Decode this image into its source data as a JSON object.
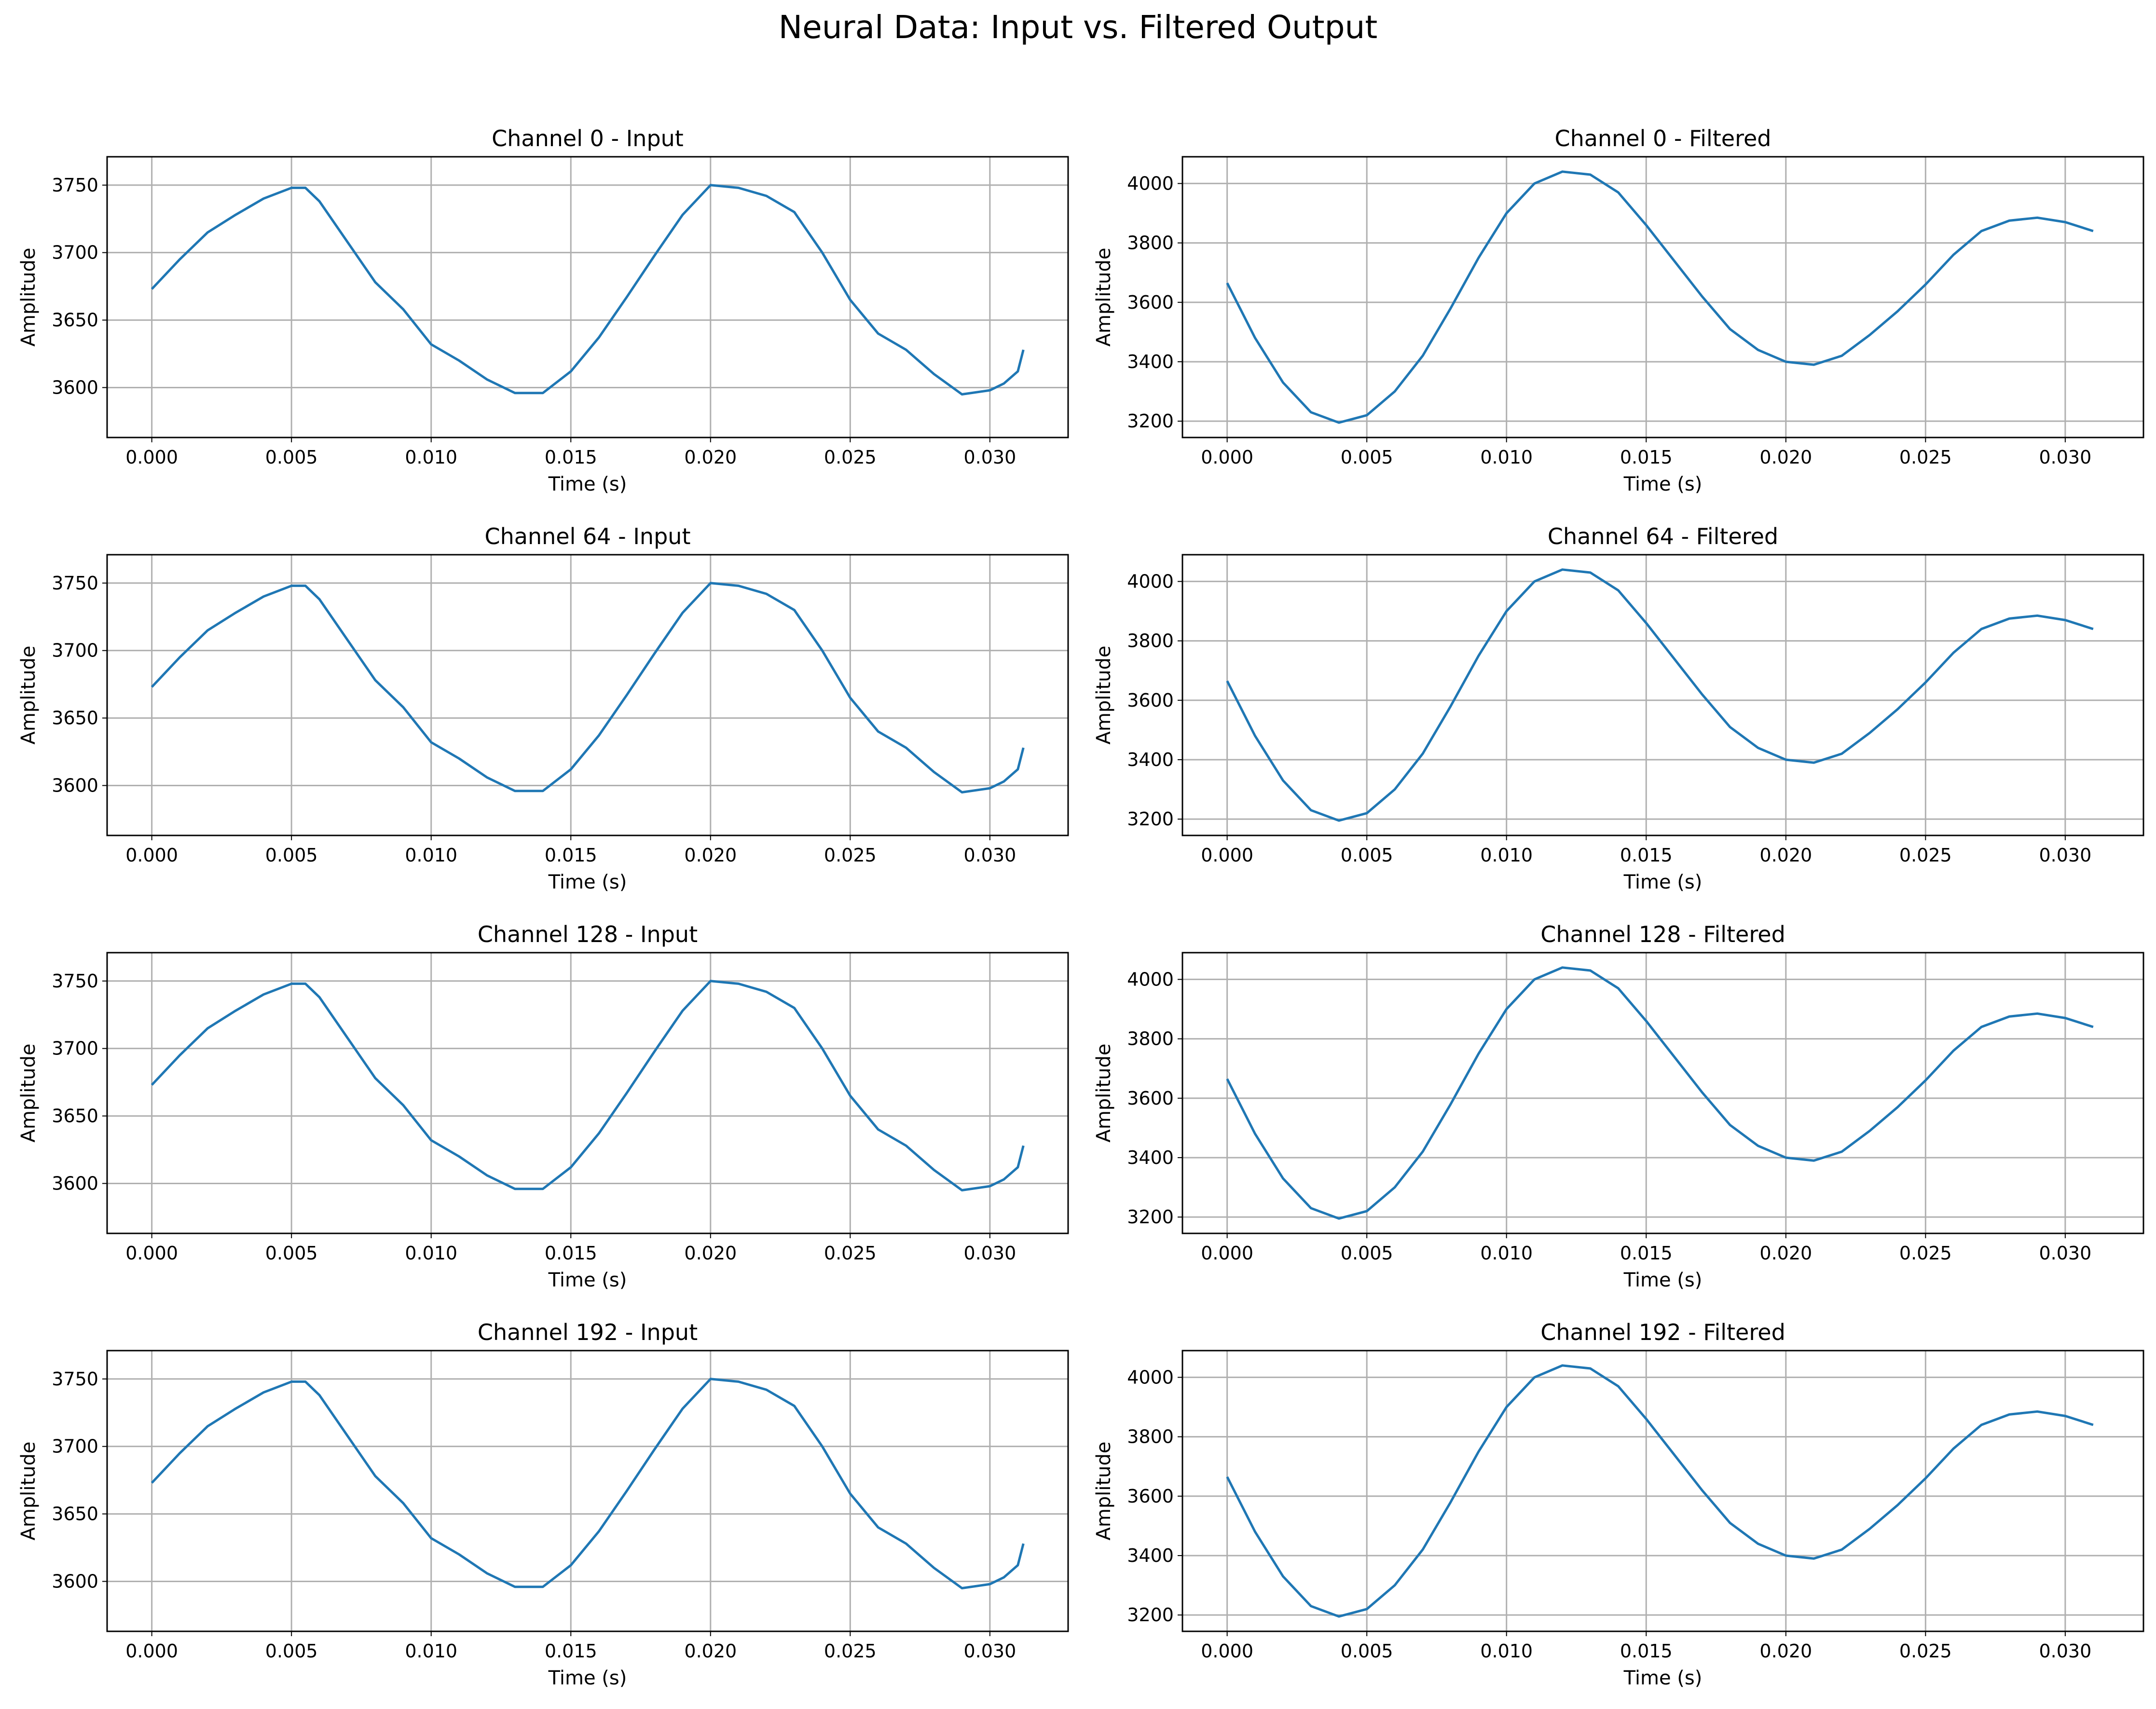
{
  "figure": {
    "suptitle": "Neural Data: Input vs. Filtered Output",
    "line_color": "#1f77b4",
    "grid_color": "#b0b0b0"
  },
  "chart_data": [
    {
      "type": "line",
      "title": "Channel 0 - Input",
      "xlabel": "Time (s)",
      "ylabel": "Amplitude",
      "xlim": [
        -0.0016,
        0.0328
      ],
      "ylim": [
        3563,
        3771
      ],
      "xticks": [
        "0.000",
        "0.005",
        "0.010",
        "0.015",
        "0.020",
        "0.025",
        "0.030"
      ],
      "yticks": [
        3600,
        3650,
        3700,
        3750
      ],
      "grid": true,
      "series": [
        {
          "x": [
            0.0,
            0.001,
            0.002,
            0.003,
            0.004,
            0.005,
            0.0055,
            0.006,
            0.007,
            0.008,
            0.009,
            0.01,
            0.011,
            0.012,
            0.013,
            0.014,
            0.015,
            0.016,
            0.017,
            0.018,
            0.019,
            0.02,
            0.021,
            0.022,
            0.023,
            0.024,
            0.025,
            0.026,
            0.027,
            0.028,
            0.029,
            0.03,
            0.0305,
            0.031,
            0.0312
          ],
          "y": [
            3673,
            3695,
            3715,
            3728,
            3740,
            3748,
            3748,
            3738,
            3708,
            3678,
            3658,
            3632,
            3620,
            3606,
            3596,
            3596,
            3612,
            3637,
            3667,
            3698,
            3728,
            3750,
            3748,
            3742,
            3730,
            3700,
            3665,
            3640,
            3628,
            3610,
            3595,
            3598,
            3603,
            3612,
            3628
          ]
        }
      ]
    },
    {
      "type": "line",
      "title": "Channel 0 - Filtered",
      "xlabel": "Time (s)",
      "ylabel": "Amplitude",
      "xlim": [
        -0.0016,
        0.0328
      ],
      "ylim": [
        3145,
        4090
      ],
      "xticks": [
        "0.000",
        "0.005",
        "0.010",
        "0.015",
        "0.020",
        "0.025",
        "0.030"
      ],
      "yticks": [
        3200,
        3400,
        3600,
        3800,
        4000
      ],
      "grid": true,
      "series": [
        {
          "x": [
            0.0,
            0.001,
            0.002,
            0.003,
            0.004,
            0.005,
            0.006,
            0.007,
            0.008,
            0.009,
            0.01,
            0.011,
            0.012,
            0.013,
            0.014,
            0.015,
            0.016,
            0.017,
            0.018,
            0.019,
            0.02,
            0.021,
            0.022,
            0.023,
            0.024,
            0.025,
            0.026,
            0.027,
            0.028,
            0.029,
            0.03,
            0.031
          ],
          "y": [
            3665,
            3480,
            3330,
            3230,
            3195,
            3220,
            3300,
            3420,
            3580,
            3750,
            3900,
            4000,
            4040,
            4030,
            3970,
            3860,
            3740,
            3620,
            3510,
            3440,
            3400,
            3390,
            3420,
            3490,
            3570,
            3660,
            3760,
            3840,
            3875,
            3885,
            3870,
            3840
          ]
        }
      ]
    },
    {
      "type": "line",
      "title": "Channel 64 - Input",
      "xlabel": "Time (s)",
      "ylabel": "Amplitude",
      "xlim": [
        -0.0016,
        0.0328
      ],
      "ylim": [
        3563,
        3771
      ],
      "xticks": [
        "0.000",
        "0.005",
        "0.010",
        "0.015",
        "0.020",
        "0.025",
        "0.030"
      ],
      "yticks": [
        3600,
        3650,
        3700,
        3750
      ],
      "grid": true,
      "series": [
        {
          "x": [
            0.0,
            0.001,
            0.002,
            0.003,
            0.004,
            0.005,
            0.0055,
            0.006,
            0.007,
            0.008,
            0.009,
            0.01,
            0.011,
            0.012,
            0.013,
            0.014,
            0.015,
            0.016,
            0.017,
            0.018,
            0.019,
            0.02,
            0.021,
            0.022,
            0.023,
            0.024,
            0.025,
            0.026,
            0.027,
            0.028,
            0.029,
            0.03,
            0.0305,
            0.031,
            0.0312
          ],
          "y": [
            3673,
            3695,
            3715,
            3728,
            3740,
            3748,
            3748,
            3738,
            3708,
            3678,
            3658,
            3632,
            3620,
            3606,
            3596,
            3596,
            3612,
            3637,
            3667,
            3698,
            3728,
            3750,
            3748,
            3742,
            3730,
            3700,
            3665,
            3640,
            3628,
            3610,
            3595,
            3598,
            3603,
            3612,
            3628
          ]
        }
      ]
    },
    {
      "type": "line",
      "title": "Channel 64 - Filtered",
      "xlabel": "Time (s)",
      "ylabel": "Amplitude",
      "xlim": [
        -0.0016,
        0.0328
      ],
      "ylim": [
        3145,
        4090
      ],
      "xticks": [
        "0.000",
        "0.005",
        "0.010",
        "0.015",
        "0.020",
        "0.025",
        "0.030"
      ],
      "yticks": [
        3200,
        3400,
        3600,
        3800,
        4000
      ],
      "grid": true,
      "series": [
        {
          "x": [
            0.0,
            0.001,
            0.002,
            0.003,
            0.004,
            0.005,
            0.006,
            0.007,
            0.008,
            0.009,
            0.01,
            0.011,
            0.012,
            0.013,
            0.014,
            0.015,
            0.016,
            0.017,
            0.018,
            0.019,
            0.02,
            0.021,
            0.022,
            0.023,
            0.024,
            0.025,
            0.026,
            0.027,
            0.028,
            0.029,
            0.03,
            0.031
          ],
          "y": [
            3665,
            3480,
            3330,
            3230,
            3195,
            3220,
            3300,
            3420,
            3580,
            3750,
            3900,
            4000,
            4040,
            4030,
            3970,
            3860,
            3740,
            3620,
            3510,
            3440,
            3400,
            3390,
            3420,
            3490,
            3570,
            3660,
            3760,
            3840,
            3875,
            3885,
            3870,
            3840
          ]
        }
      ]
    },
    {
      "type": "line",
      "title": "Channel 128 - Input",
      "xlabel": "Time (s)",
      "ylabel": "Amplitude",
      "xlim": [
        -0.0016,
        0.0328
      ],
      "ylim": [
        3563,
        3771
      ],
      "xticks": [
        "0.000",
        "0.005",
        "0.010",
        "0.015",
        "0.020",
        "0.025",
        "0.030"
      ],
      "yticks": [
        3600,
        3650,
        3700,
        3750
      ],
      "grid": true,
      "series": [
        {
          "x": [
            0.0,
            0.001,
            0.002,
            0.003,
            0.004,
            0.005,
            0.0055,
            0.006,
            0.007,
            0.008,
            0.009,
            0.01,
            0.011,
            0.012,
            0.013,
            0.014,
            0.015,
            0.016,
            0.017,
            0.018,
            0.019,
            0.02,
            0.021,
            0.022,
            0.023,
            0.024,
            0.025,
            0.026,
            0.027,
            0.028,
            0.029,
            0.03,
            0.0305,
            0.031,
            0.0312
          ],
          "y": [
            3673,
            3695,
            3715,
            3728,
            3740,
            3748,
            3748,
            3738,
            3708,
            3678,
            3658,
            3632,
            3620,
            3606,
            3596,
            3596,
            3612,
            3637,
            3667,
            3698,
            3728,
            3750,
            3748,
            3742,
            3730,
            3700,
            3665,
            3640,
            3628,
            3610,
            3595,
            3598,
            3603,
            3612,
            3628
          ]
        }
      ]
    },
    {
      "type": "line",
      "title": "Channel 128 - Filtered",
      "xlabel": "Time (s)",
      "ylabel": "Amplitude",
      "xlim": [
        -0.0016,
        0.0328
      ],
      "ylim": [
        3145,
        4090
      ],
      "xticks": [
        "0.000",
        "0.005",
        "0.010",
        "0.015",
        "0.020",
        "0.025",
        "0.030"
      ],
      "yticks": [
        3200,
        3400,
        3600,
        3800,
        4000
      ],
      "grid": true,
      "series": [
        {
          "x": [
            0.0,
            0.001,
            0.002,
            0.003,
            0.004,
            0.005,
            0.006,
            0.007,
            0.008,
            0.009,
            0.01,
            0.011,
            0.012,
            0.013,
            0.014,
            0.015,
            0.016,
            0.017,
            0.018,
            0.019,
            0.02,
            0.021,
            0.022,
            0.023,
            0.024,
            0.025,
            0.026,
            0.027,
            0.028,
            0.029,
            0.03,
            0.031
          ],
          "y": [
            3665,
            3480,
            3330,
            3230,
            3195,
            3220,
            3300,
            3420,
            3580,
            3750,
            3900,
            4000,
            4040,
            4030,
            3970,
            3860,
            3740,
            3620,
            3510,
            3440,
            3400,
            3390,
            3420,
            3490,
            3570,
            3660,
            3760,
            3840,
            3875,
            3885,
            3870,
            3840
          ]
        }
      ]
    },
    {
      "type": "line",
      "title": "Channel 192 - Input",
      "xlabel": "Time (s)",
      "ylabel": "Amplitude",
      "xlim": [
        -0.0016,
        0.0328
      ],
      "ylim": [
        3563,
        3771
      ],
      "xticks": [
        "0.000",
        "0.005",
        "0.010",
        "0.015",
        "0.020",
        "0.025",
        "0.030"
      ],
      "yticks": [
        3600,
        3650,
        3700,
        3750
      ],
      "grid": true,
      "series": [
        {
          "x": [
            0.0,
            0.001,
            0.002,
            0.003,
            0.004,
            0.005,
            0.0055,
            0.006,
            0.007,
            0.008,
            0.009,
            0.01,
            0.011,
            0.012,
            0.013,
            0.014,
            0.015,
            0.016,
            0.017,
            0.018,
            0.019,
            0.02,
            0.021,
            0.022,
            0.023,
            0.024,
            0.025,
            0.026,
            0.027,
            0.028,
            0.029,
            0.03,
            0.0305,
            0.031,
            0.0312
          ],
          "y": [
            3673,
            3695,
            3715,
            3728,
            3740,
            3748,
            3748,
            3738,
            3708,
            3678,
            3658,
            3632,
            3620,
            3606,
            3596,
            3596,
            3612,
            3637,
            3667,
            3698,
            3728,
            3750,
            3748,
            3742,
            3730,
            3700,
            3665,
            3640,
            3628,
            3610,
            3595,
            3598,
            3603,
            3612,
            3628
          ]
        }
      ]
    },
    {
      "type": "line",
      "title": "Channel 192 - Filtered",
      "xlabel": "Time (s)",
      "ylabel": "Amplitude",
      "xlim": [
        -0.0016,
        0.0328
      ],
      "ylim": [
        3145,
        4090
      ],
      "xticks": [
        "0.000",
        "0.005",
        "0.010",
        "0.015",
        "0.020",
        "0.025",
        "0.030"
      ],
      "yticks": [
        3200,
        3400,
        3600,
        3800,
        4000
      ],
      "grid": true,
      "series": [
        {
          "x": [
            0.0,
            0.001,
            0.002,
            0.003,
            0.004,
            0.005,
            0.006,
            0.007,
            0.008,
            0.009,
            0.01,
            0.011,
            0.012,
            0.013,
            0.014,
            0.015,
            0.016,
            0.017,
            0.018,
            0.019,
            0.02,
            0.021,
            0.022,
            0.023,
            0.024,
            0.025,
            0.026,
            0.027,
            0.028,
            0.029,
            0.03,
            0.031
          ],
          "y": [
            3665,
            3480,
            3330,
            3230,
            3195,
            3220,
            3300,
            3420,
            3580,
            3750,
            3900,
            4000,
            4040,
            4030,
            3970,
            3860,
            3740,
            3620,
            3510,
            3440,
            3400,
            3390,
            3420,
            3490,
            3570,
            3660,
            3760,
            3840,
            3875,
            3885,
            3870,
            3840
          ]
        }
      ]
    }
  ]
}
